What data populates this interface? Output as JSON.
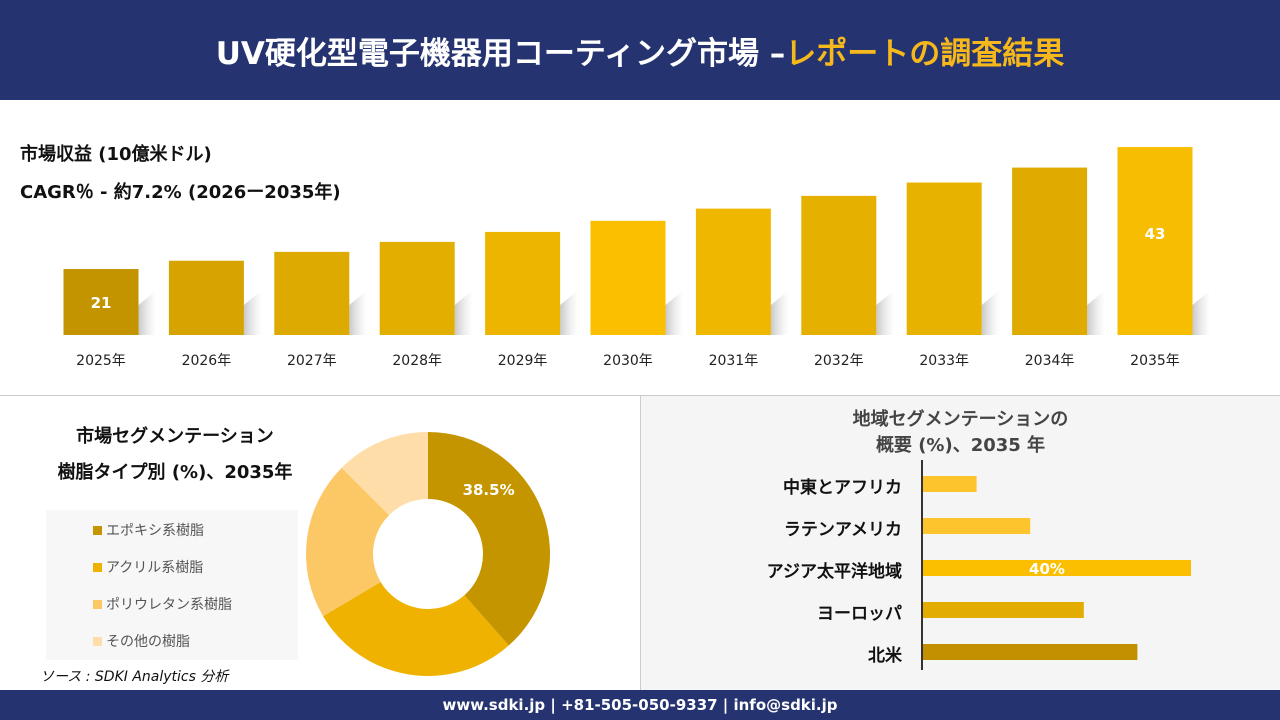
{
  "header": {
    "title_main": "UV硬化型電子機器用コーティング市場 –",
    "title_accent": "レポートの調査結果"
  },
  "revenue": {
    "title": "市場収益 (10億米ドル)",
    "cagr": "CAGR％ - 約7.2% (2026ー2035年)"
  },
  "segment": {
    "title_line1": "市場セグメンテーション",
    "title_line2": "樹脂タイプ別 (%)、2035年"
  },
  "region": {
    "title_line1": "地域セグメンテーションの",
    "title_line2": "概要 (%)、2035 年"
  },
  "source": "ソース : SDKI Analytics 分析",
  "footer": "www.sdki.jp | +81-505-050-9337 | info@sdki.jp",
  "colors": {
    "navy": "#253470",
    "accent": "#f6b81a"
  },
  "chart_data": [
    {
      "type": "bar",
      "categories": [
        "2025年",
        "2026年",
        "2027年",
        "2028年",
        "2029年",
        "2030年",
        "2031年",
        "2032年",
        "2033年",
        "2034年",
        "2035年"
      ],
      "values": [
        21,
        22.5,
        24.1,
        25.9,
        27.7,
        29.7,
        31.9,
        34.2,
        36.6,
        39.3,
        43
      ],
      "data_labels": {
        "0": "21",
        "10": "43"
      },
      "colors": [
        "#c39300",
        "#d6a300",
        "#dcaa00",
        "#e2ae00",
        "#eeb500",
        "#fbbf00",
        "#f0b700",
        "#e6b000",
        "#e8b200",
        "#e0ab00",
        "#f7bd00"
      ]
    },
    {
      "type": "pie",
      "donut": true,
      "labels": [
        "エポキシ系樹脂",
        "アクリル系樹脂",
        "ポリウレタン系樹脂",
        "その他の樹脂"
      ],
      "values": [
        38.5,
        28,
        21,
        12.5
      ],
      "data_labels": {
        "0": "38.5%"
      },
      "colors": [
        "#c59500",
        "#efb200",
        "#fcc865",
        "#fedda8"
      ]
    },
    {
      "type": "bar",
      "orientation": "horizontal",
      "categories": [
        "中東とアフリカ",
        "ラテンアメリカ",
        "アジア太平洋地域",
        "ヨーロッパ",
        "北米"
      ],
      "values": [
        8,
        16,
        40,
        24,
        32
      ],
      "data_labels": {
        "2": "40%"
      },
      "colors": [
        "#fdc52b",
        "#fdc52b",
        "#fcbf00",
        "#e2ad00",
        "#c29000"
      ]
    }
  ]
}
